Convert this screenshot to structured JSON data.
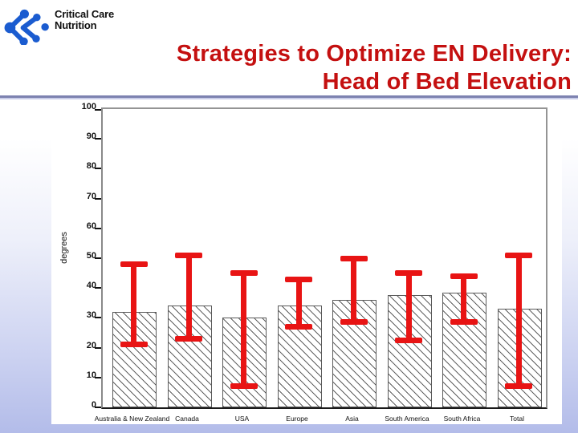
{
  "logo": {
    "line1": "Critical Care",
    "line2": "Nutrition"
  },
  "title": {
    "line1": "Strategies to Optimize EN Delivery:",
    "line2": "Head of Bed Elevation"
  },
  "colors": {
    "title_red": "#c41010",
    "logo_blue": "#1b5cd0",
    "error_bar_red": "#e81414",
    "rule_dark": "#7d82b0",
    "rule_light": "#c9cde9"
  },
  "chart_data": {
    "type": "bar",
    "title": "",
    "xlabel": "",
    "ylabel": "degrees",
    "ylim": [
      0,
      100
    ],
    "ytick_interval": 10,
    "grid": false,
    "legend": "none",
    "bar_style": {
      "fill": "white",
      "hatch": "diagonal-backslash",
      "outline": "#5a5a5a"
    },
    "error_bar_color": "#e81414",
    "categories": [
      "Australia & New Zealand",
      "Canada",
      "USA",
      "Europe",
      "Asia",
      "South America",
      "South Africa",
      "Total"
    ],
    "series": [
      {
        "name": "Head of bed elevation (degrees)",
        "values": [
          31.5,
          33.5,
          29.5,
          33.5,
          35.5,
          37,
          38,
          32.5
        ]
      }
    ],
    "error_bars": {
      "low": [
        21,
        23,
        7,
        27,
        28.5,
        22.5,
        28.5,
        7
      ],
      "high": [
        48,
        51,
        45,
        43,
        50,
        45,
        44,
        51
      ]
    }
  }
}
